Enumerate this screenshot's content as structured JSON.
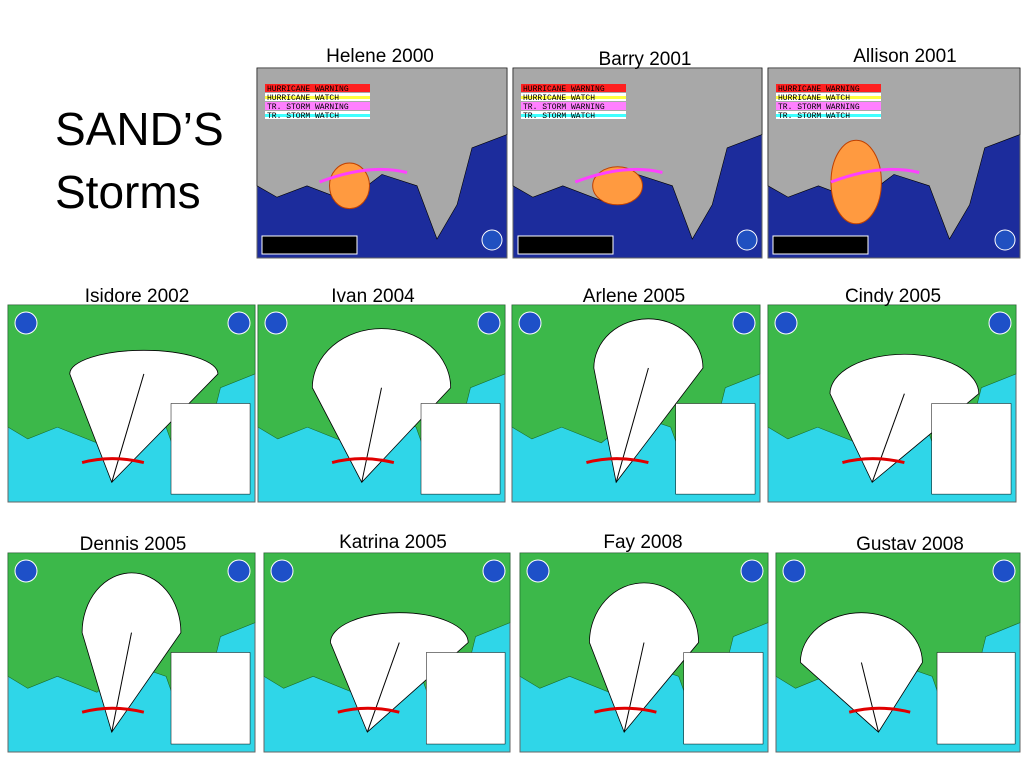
{
  "title": [
    "SAND’S",
    "Storms"
  ],
  "storms": [
    "Helene 2000",
    "Barry 2001",
    "Allison 2001",
    "Isidore 2002",
    "Ivan 2004",
    "Arlene 2005",
    "Cindy 2005",
    "Dennis 2005",
    "Katrina 2005",
    "Fay 2008",
    "Gustav 2008"
  ],
  "legend": [
    "HURRICANE WARNING",
    "HURRICANE WATCH",
    "TR. STORM WARNING",
    "TR. STORM WATCH"
  ]
}
